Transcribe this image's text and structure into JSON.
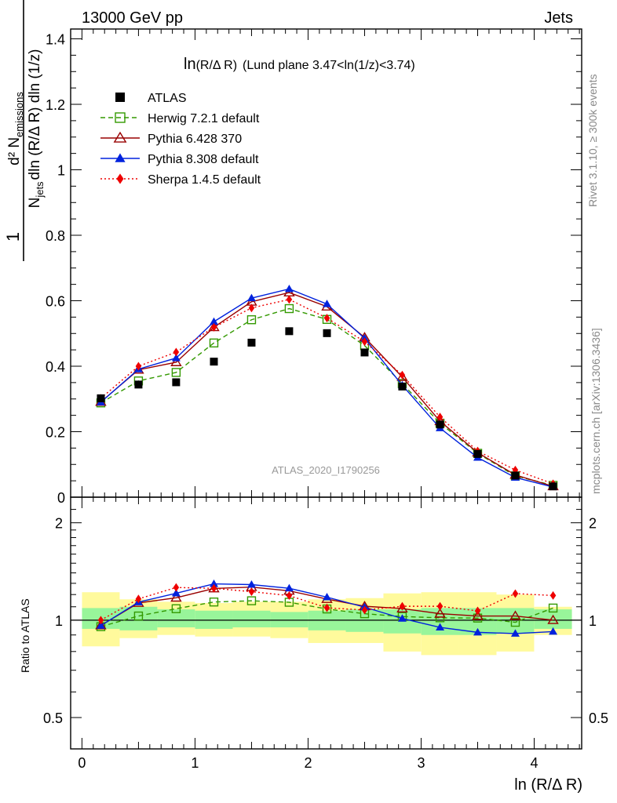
{
  "header": {
    "left": "13000 GeV pp",
    "right": "Jets"
  },
  "side_labels": {
    "rivet": "Rivet 3.1.10, ≥ 300k events",
    "mcplots": "mcplots.cern.ch [arXiv:1306.3436]"
  },
  "plot_title": {
    "prefix": "ln",
    "arg": "(R/Δ R)",
    "selection": "(Lund plane 3.47<ln(1/z)<3.74)"
  },
  "y_label": {
    "numerator": "d² N",
    "numerator_sub": "emissions",
    "prefix": "1",
    "denominator": "N",
    "denominator_sub": "jets",
    "denominator_rest": "dln (R/Δ R) dln (1/z)"
  },
  "ratio_ylabel": "Ratio to ATLAS",
  "analysis_id": "ATLAS_2020_I1790256",
  "xlabel": "ln (R/Δ R)",
  "chart_data": [
    {
      "type": "scatter",
      "role": "main",
      "xlim": [
        -0.1,
        4.42
      ],
      "ylim": [
        0,
        1.43
      ],
      "x_ticks": [
        "0",
        "1",
        "2",
        "3",
        "4"
      ],
      "y_ticks": [
        "0",
        "0.2",
        "0.4",
        "0.6",
        "0.8",
        "1",
        "1.2",
        "1.4"
      ],
      "x": [
        0.167,
        0.5,
        0.833,
        1.167,
        1.5,
        1.833,
        2.167,
        2.5,
        2.833,
        3.167,
        3.5,
        3.833,
        4.167
      ],
      "series": [
        {
          "name": "ATLAS",
          "color": "#000000",
          "marker": "filled-square",
          "line": "none",
          "values": [
            0.302,
            0.344,
            0.351,
            0.414,
            0.472,
            0.507,
            0.501,
            0.442,
            0.338,
            0.222,
            0.132,
            0.066,
            0.033
          ]
        },
        {
          "name": "Herwig 7.2.1 default",
          "color": "#339900",
          "marker": "open-square",
          "line": "dashed",
          "values": [
            0.288,
            0.355,
            0.381,
            0.471,
            0.542,
            0.576,
            0.543,
            0.463,
            0.347,
            0.226,
            0.134,
            0.065,
            0.036
          ]
        },
        {
          "name": "Pythia 6.428 370",
          "color": "#990000",
          "marker": "open-triangle",
          "line": "solid",
          "values": [
            0.291,
            0.389,
            0.412,
            0.519,
            0.597,
            0.625,
            0.582,
            0.488,
            0.367,
            0.232,
            0.136,
            0.068,
            0.033
          ]
        },
        {
          "name": "Pythia 8.308 default",
          "color": "#0022dd",
          "marker": "filled-triangle",
          "line": "solid",
          "values": [
            0.29,
            0.391,
            0.425,
            0.536,
            0.608,
            0.636,
            0.59,
            0.485,
            0.342,
            0.211,
            0.121,
            0.06,
            0.031
          ]
        },
        {
          "name": "Sherpa 1.4.5 default",
          "color": "#ee0000",
          "marker": "filled-diamond",
          "line": "dotted",
          "values": [
            0.302,
            0.4,
            0.443,
            0.519,
            0.578,
            0.604,
            0.547,
            0.475,
            0.373,
            0.245,
            0.141,
            0.083,
            0.041
          ]
        }
      ]
    },
    {
      "type": "scatter",
      "role": "ratio",
      "xlim": [
        -0.1,
        4.42
      ],
      "ylim": [
        0.4,
        2.4
      ],
      "yscale": "log",
      "y_ticks": [
        "0.5",
        "1",
        "2"
      ],
      "x": [
        0.167,
        0.5,
        0.833,
        1.167,
        1.5,
        1.833,
        2.167,
        2.5,
        2.833,
        3.167,
        3.5,
        3.833,
        4.167
      ],
      "band_inner": [
        [
          0.94,
          1.09
        ],
        [
          0.93,
          1.1
        ],
        [
          0.95,
          1.08
        ],
        [
          0.94,
          1.07
        ],
        [
          0.95,
          1.07
        ],
        [
          0.95,
          1.06
        ],
        [
          0.93,
          1.07
        ],
        [
          0.92,
          1.08
        ],
        [
          0.91,
          1.08
        ],
        [
          0.9,
          1.09
        ],
        [
          0.9,
          1.09
        ],
        [
          0.91,
          1.09
        ],
        [
          0.94,
          1.08
        ]
      ],
      "band_outer": [
        [
          0.83,
          1.22
        ],
        [
          0.88,
          1.16
        ],
        [
          0.9,
          1.14
        ],
        [
          0.89,
          1.13
        ],
        [
          0.89,
          1.14
        ],
        [
          0.88,
          1.14
        ],
        [
          0.85,
          1.16
        ],
        [
          0.85,
          1.17
        ],
        [
          0.8,
          1.21
        ],
        [
          0.78,
          1.22
        ],
        [
          0.78,
          1.22
        ],
        [
          0.8,
          1.2
        ],
        [
          0.9,
          1.1
        ]
      ],
      "series": [
        {
          "name": "Herwig 7.2.1 default",
          "values": [
            0.955,
            1.03,
            1.085,
            1.138,
            1.148,
            1.136,
            1.083,
            1.047,
            1.026,
            1.017,
            1.015,
            0.985,
            1.09
          ]
        },
        {
          "name": "Pythia 6.428 370",
          "values": [
            0.963,
            1.13,
            1.173,
            1.253,
            1.265,
            1.232,
            1.162,
            1.104,
            1.086,
            1.047,
            1.03,
            1.03,
            1.0
          ]
        },
        {
          "name": "Pythia 8.308 default",
          "values": [
            0.962,
            1.137,
            1.211,
            1.295,
            1.288,
            1.255,
            1.178,
            1.097,
            1.012,
            0.95,
            0.917,
            0.909,
            0.922
          ]
        },
        {
          "name": "Sherpa 1.4.5 default",
          "values": [
            1.0,
            1.163,
            1.262,
            1.254,
            1.225,
            1.191,
            1.092,
            1.075,
            1.104,
            1.104,
            1.068,
            1.208,
            1.192
          ]
        }
      ]
    }
  ]
}
